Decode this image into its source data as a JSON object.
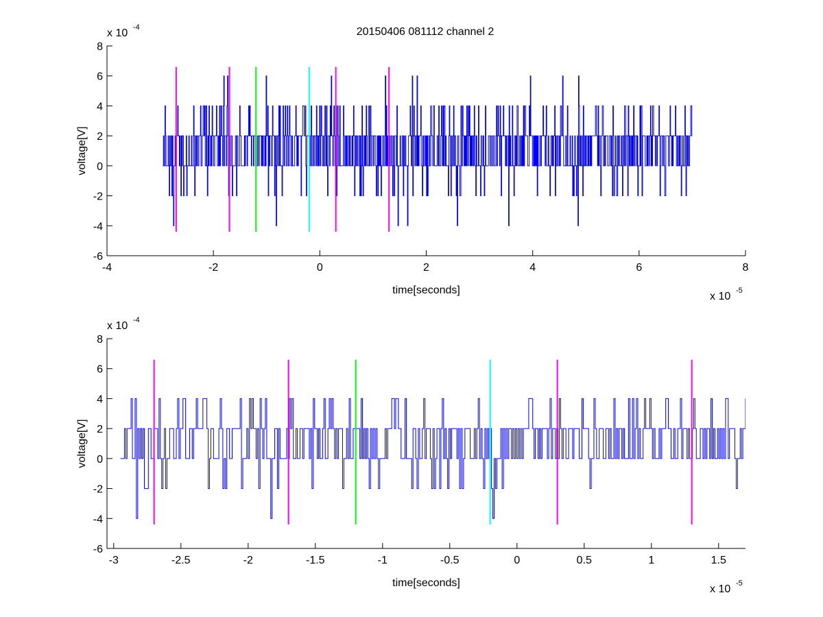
{
  "title": "20150406 081112 channel 2",
  "chart_data": [
    {
      "type": "line",
      "xlabel": "time[seconds]",
      "ylabel": "voltage[V]",
      "x_multiplier_base": "x 10",
      "x_multiplier_exp": "-5",
      "y_multiplier_base": "x 10",
      "y_multiplier_exp": "-4",
      "xlim": [
        -4,
        8
      ],
      "ylim": [
        -6,
        8
      ],
      "x_ticks": [
        "-4",
        "-2",
        "0",
        "2",
        "4",
        "6",
        "8"
      ],
      "y_ticks": [
        "-6",
        "-4",
        "-2",
        "0",
        "2",
        "4",
        "6",
        "8"
      ],
      "x_tick_values": [
        -4,
        -2,
        0,
        2,
        4,
        6,
        8
      ],
      "y_tick_values": [
        -6,
        -4,
        -2,
        0,
        2,
        4,
        6,
        8
      ],
      "signal": {
        "color": "#0000ff",
        "x_start": -2.95,
        "x_end": 7.0,
        "levels": [
          -4,
          -2,
          0,
          2,
          4,
          6
        ],
        "approx_points": 1000
      },
      "markers": [
        {
          "x": -2.7,
          "color": "#ff00ff",
          "y_range": [
            -4.4,
            6.6
          ]
        },
        {
          "x": -1.7,
          "color": "#ff00ff",
          "y_range": [
            -4.4,
            6.6
          ]
        },
        {
          "x": -1.2,
          "color": "#00ff00",
          "y_range": [
            -4.4,
            6.6
          ]
        },
        {
          "x": -0.2,
          "color": "#00ffff",
          "y_range": [
            -4.4,
            6.6
          ]
        },
        {
          "x": 0.3,
          "color": "#ff00ff",
          "y_range": [
            -4.4,
            6.6
          ]
        },
        {
          "x": 1.3,
          "color": "#ff00ff",
          "y_range": [
            -4.4,
            6.6
          ]
        }
      ]
    },
    {
      "type": "line",
      "xlabel": "time[seconds]",
      "ylabel": "voltage[V]",
      "x_multiplier_base": "x 10",
      "x_multiplier_exp": "-5",
      "y_multiplier_base": "x 10",
      "y_multiplier_exp": "-4",
      "xlim": [
        -3.05,
        1.7
      ],
      "ylim": [
        -6,
        8
      ],
      "x_ticks": [
        "-3",
        "-2.5",
        "-2",
        "-1.5",
        "-1",
        "-0.5",
        "0",
        "0.5",
        "1",
        "1.5"
      ],
      "y_ticks": [
        "-6",
        "-4",
        "-2",
        "0",
        "2",
        "4",
        "6",
        "8"
      ],
      "x_tick_values": [
        -3,
        -2.5,
        -2,
        -1.5,
        -1,
        -0.5,
        0,
        0.5,
        1,
        1.5
      ],
      "y_tick_values": [
        -6,
        -4,
        -2,
        0,
        2,
        4,
        6,
        8
      ],
      "signal": {
        "color": "#0000ff",
        "x_start": -2.95,
        "x_end": 1.7,
        "levels": [
          -4,
          -2,
          0,
          2,
          4
        ],
        "approx_points": 470
      },
      "markers": [
        {
          "x": -2.7,
          "color": "#ff00ff",
          "y_range": [
            -4.4,
            6.6
          ]
        },
        {
          "x": -1.7,
          "color": "#ff00ff",
          "y_range": [
            -4.4,
            6.6
          ]
        },
        {
          "x": -1.2,
          "color": "#00ff00",
          "y_range": [
            -4.4,
            6.6
          ]
        },
        {
          "x": -0.2,
          "color": "#00ffff",
          "y_range": [
            -4.4,
            6.6
          ]
        },
        {
          "x": 0.3,
          "color": "#ff00ff",
          "y_range": [
            -4.4,
            6.6
          ]
        },
        {
          "x": 1.3,
          "color": "#ff00ff",
          "y_range": [
            -4.4,
            6.6
          ]
        }
      ]
    }
  ]
}
